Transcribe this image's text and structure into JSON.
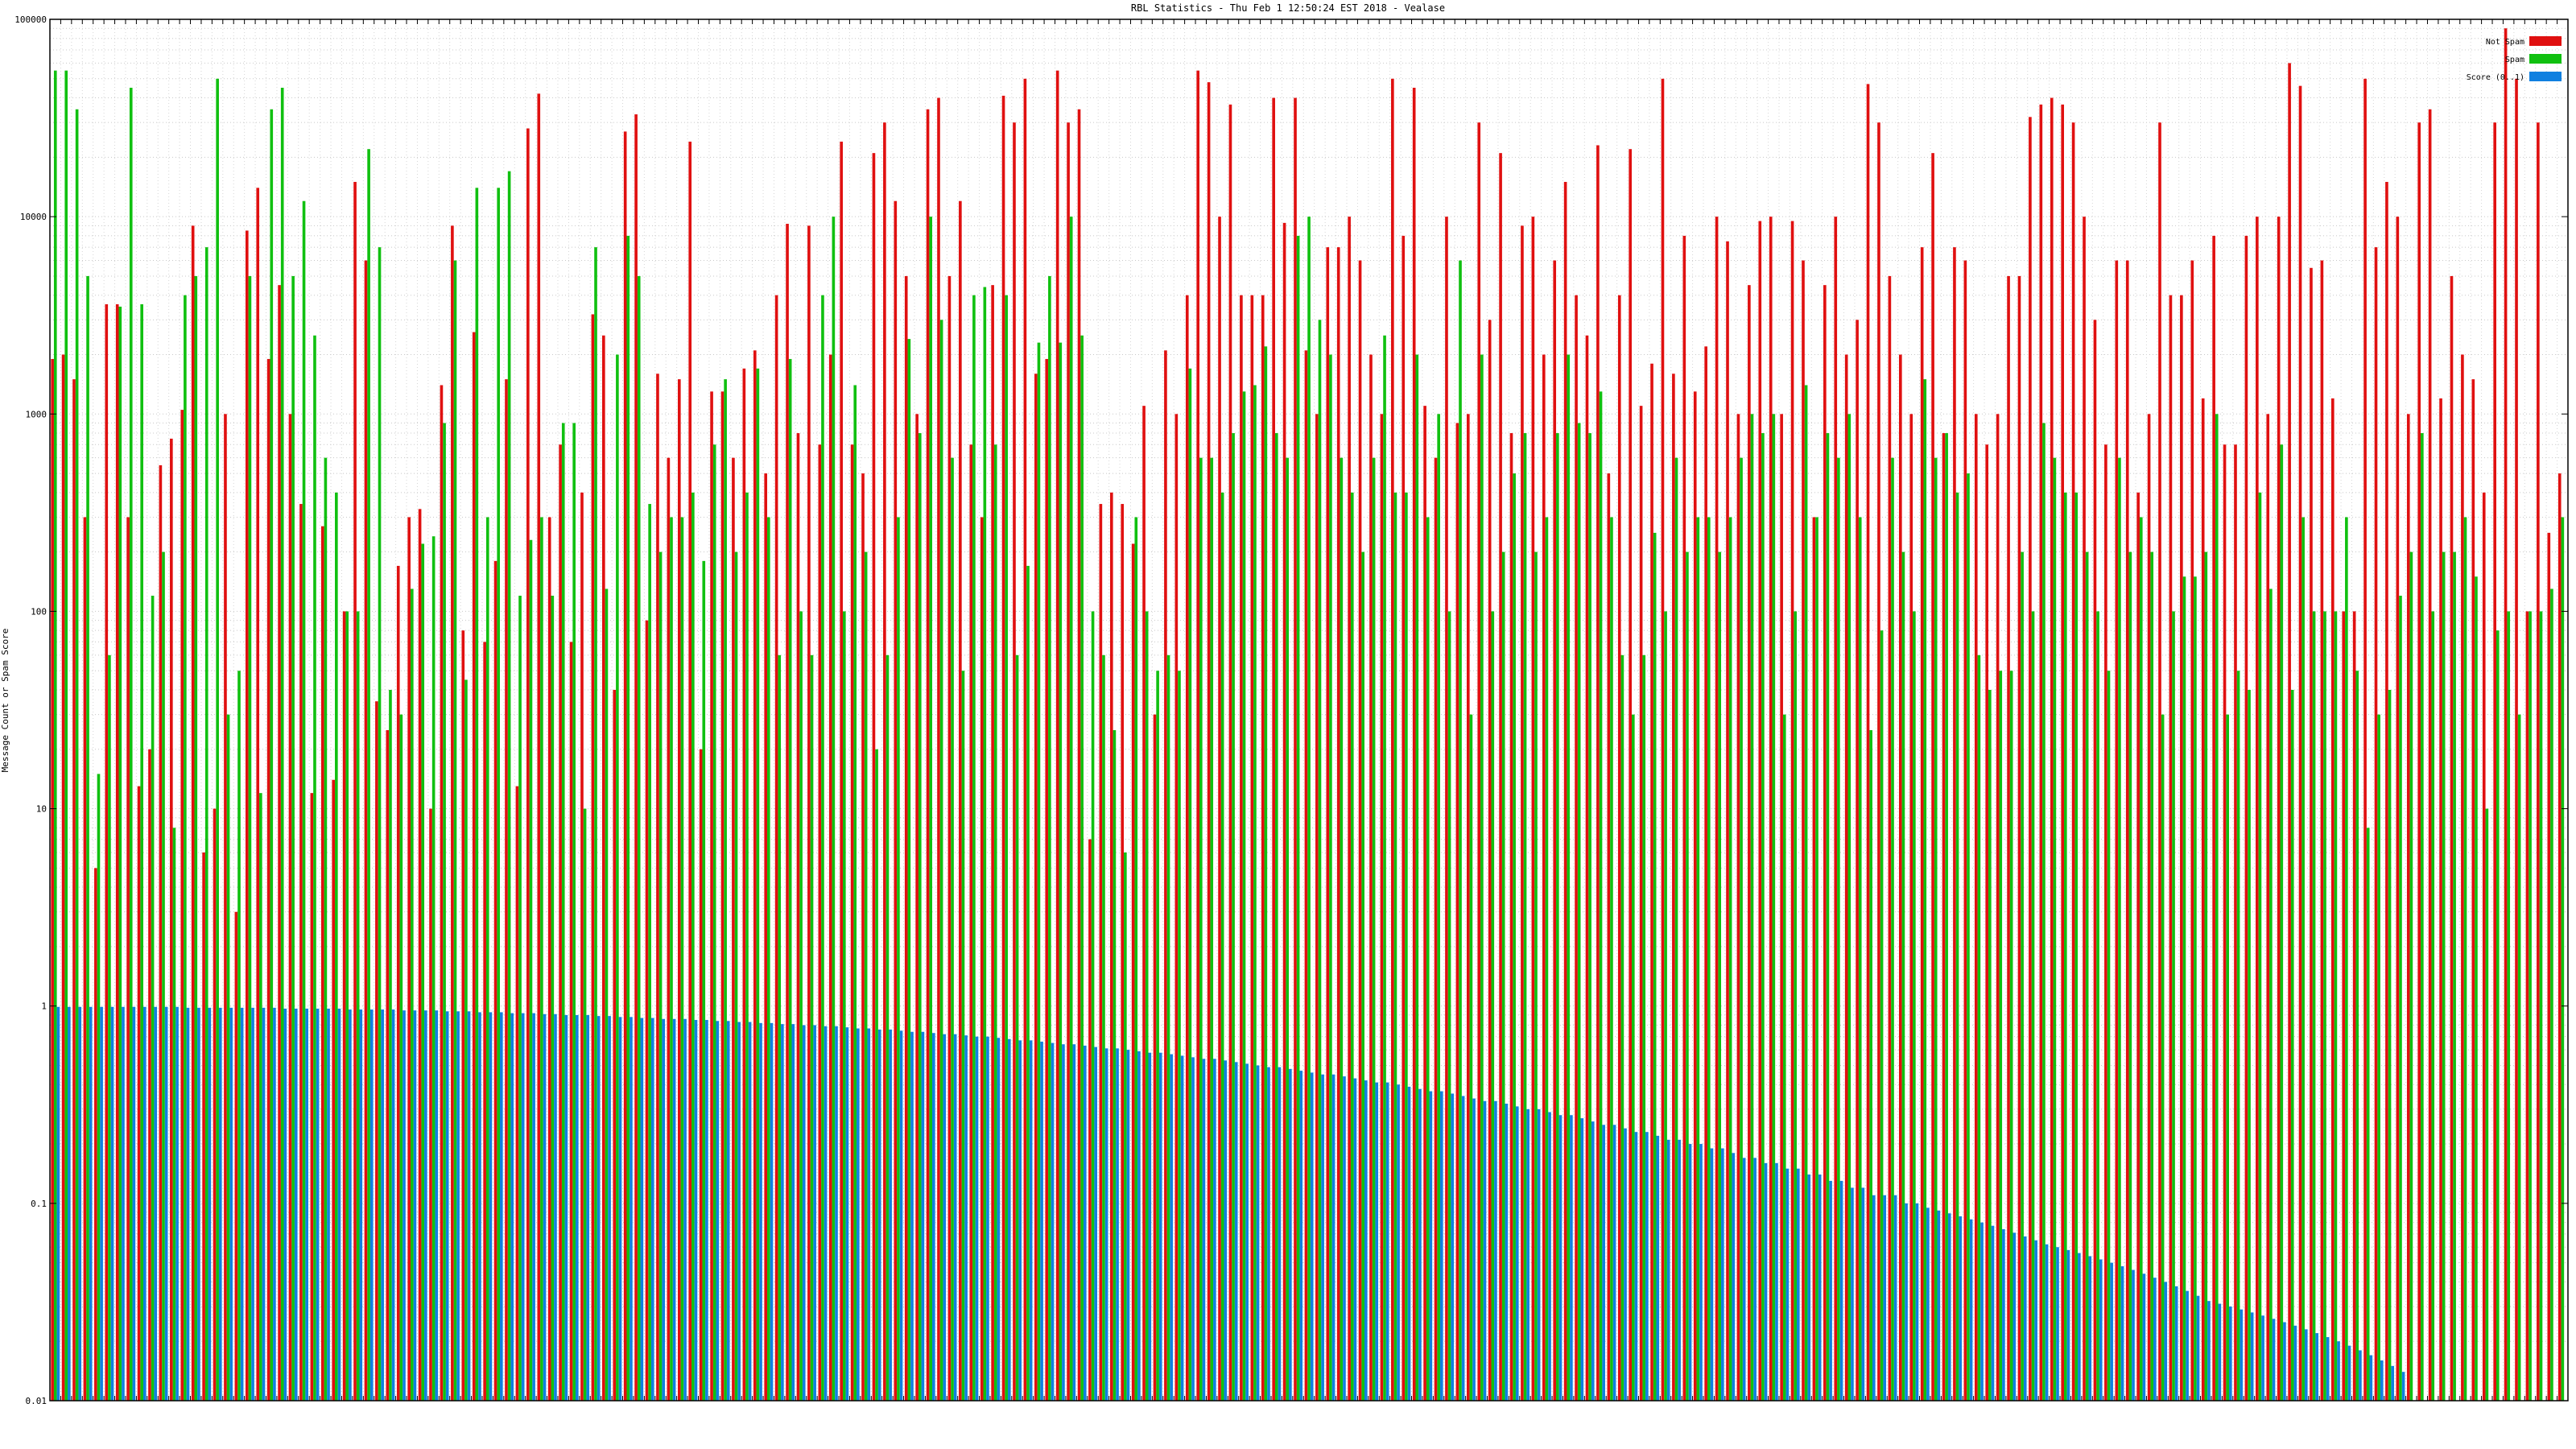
{
  "chart_data": {
    "type": "bar",
    "title": "RBL Statistics - Thu Feb  1 12:50:24 EST 2018 - Vealase",
    "xlabel": "",
    "ylabel": "Message Count or Spam Score",
    "y_scale": "log",
    "ylim": [
      0.01,
      100000
    ],
    "y_ticks": [
      {
        "value": 0.01,
        "label": "0.01"
      },
      {
        "value": 0.1,
        "label": "0.1"
      },
      {
        "value": 1,
        "label": "1"
      },
      {
        "value": 10,
        "label": "10"
      },
      {
        "value": 100,
        "label": "100"
      },
      {
        "value": 1000,
        "label": "1000"
      },
      {
        "value": 10000,
        "label": "10000"
      },
      {
        "value": 100000,
        "label": "100000"
      }
    ],
    "grid": true,
    "legend_position": "top-right",
    "x_tick_labels_legible": false,
    "series": [
      {
        "name": "Not Spam",
        "color": "#e01010",
        "values": [
          1900,
          2000,
          1500,
          300,
          5,
          3600,
          3600,
          300,
          13,
          20,
          550,
          750,
          1050,
          9000,
          6,
          10,
          1000,
          3,
          8500,
          14000,
          1900,
          4500,
          1000,
          350,
          12,
          270,
          14,
          100,
          15000,
          6000,
          35,
          25,
          170,
          300,
          330,
          10,
          1400,
          9000,
          80,
          2600,
          70,
          180,
          1500,
          13,
          28000,
          42000,
          300,
          700,
          70,
          400,
          3200,
          2500,
          40,
          27000,
          33000,
          90,
          1600,
          600,
          1500,
          24000,
          20,
          1300,
          1300,
          600,
          1700,
          2100,
          500,
          4000,
          9200,
          800,
          9000,
          700,
          2000,
          24000,
          700,
          500,
          21000,
          30000,
          12000,
          5000,
          1000,
          35000,
          40000,
          5000,
          12000,
          700,
          300,
          4500,
          41000,
          30000,
          50000,
          1600,
          1900,
          55000,
          30000,
          35000,
          7,
          350,
          400,
          350,
          220,
          1100,
          30,
          2100,
          1000,
          4000,
          55000,
          48000,
          10000,
          37000,
          4000,
          4000,
          4000,
          40000,
          9300,
          40000,
          2100,
          1000,
          7000,
          7000,
          10000,
          6000,
          2000,
          1000,
          50000,
          8000,
          45000,
          1100,
          600,
          10000,
          900,
          1000,
          30000,
          3000,
          21000,
          800,
          9000,
          10000,
          2000,
          6000,
          15000,
          4000,
          2500,
          23000,
          500,
          4000,
          22000,
          1100,
          1800,
          50000,
          1600,
          8000,
          1300,
          2200,
          10000,
          7500,
          1000,
          4500,
          9500,
          10000,
          1000,
          9500,
          6000,
          300,
          4500,
          10000,
          2000,
          3000,
          47000,
          30000,
          5000,
          2000,
          1000,
          7000,
          21000,
          800,
          7000,
          6000,
          1000,
          700,
          1000,
          5000,
          5000,
          32000,
          37000,
          40000,
          37000,
          30000,
          10000,
          3000,
          700,
          6000,
          6000,
          400,
          1000,
          30000,
          4000,
          4000,
          6000,
          1200,
          8000,
          700,
          700,
          8000,
          10000,
          1000,
          10000,
          60000,
          46000,
          5500,
          6000,
          1200,
          100,
          100,
          50000,
          7000,
          15000,
          10000,
          1000,
          30000,
          35000,
          1200,
          5000,
          2000,
          1500,
          400,
          30000,
          90000,
          50000,
          100,
          30000,
          250,
          500
        ]
      },
      {
        "name": "Spam",
        "color": "#10c010",
        "values": [
          55000,
          55000,
          35000,
          5000,
          15,
          60,
          3500,
          45000,
          3600,
          120,
          200,
          8,
          4000,
          5000,
          7000,
          50000,
          30,
          50,
          5000,
          12,
          35000,
          45000,
          5000,
          12000,
          2500,
          600,
          400,
          100,
          100,
          22000,
          7000,
          40,
          30,
          130,
          220,
          240,
          900,
          6000,
          45,
          14000,
          300,
          14000,
          17000,
          120,
          230,
          300,
          120,
          900,
          900,
          10,
          7000,
          130,
          2000,
          8000,
          5000,
          350,
          200,
          300,
          300,
          400,
          180,
          700,
          1500,
          200,
          400,
          1700,
          300,
          60,
          1900,
          100,
          60,
          4000,
          10000,
          100,
          1400,
          200,
          20,
          60,
          300,
          2400,
          800,
          10000,
          3000,
          600,
          50,
          4000,
          4400,
          700,
          4000,
          60,
          170,
          2300,
          5000,
          2300,
          10000,
          2500,
          100,
          60,
          25,
          6,
          300,
          100,
          50,
          60,
          50,
          1700,
          600,
          600,
          400,
          800,
          1300,
          1400,
          2200,
          800,
          600,
          8000,
          10000,
          3000,
          2000,
          600,
          400,
          200,
          600,
          2500,
          400,
          400,
          2000,
          300,
          1000,
          100,
          6000,
          30,
          2000,
          100,
          200,
          500,
          800,
          200,
          300,
          800,
          2000,
          900,
          800,
          1300,
          300,
          60,
          30,
          60,
          250,
          100,
          600,
          200,
          300,
          300,
          200,
          300,
          600,
          1000,
          800,
          1000,
          30,
          100,
          1400,
          300,
          800,
          600,
          1000,
          300,
          25,
          80,
          600,
          200,
          100,
          1500,
          600,
          800,
          400,
          500,
          60,
          40,
          50,
          50,
          200,
          100,
          900,
          600,
          400,
          400,
          200,
          100,
          50,
          600,
          200,
          300,
          200,
          30,
          100,
          150,
          150,
          200,
          1000,
          30,
          50,
          40,
          400,
          130,
          700,
          40,
          300,
          100,
          100,
          100,
          300,
          50,
          8,
          30,
          40,
          120,
          200,
          800,
          100,
          200,
          200,
          300,
          150,
          10,
          80,
          100,
          30,
          100,
          100,
          130,
          300
        ]
      },
      {
        "name": "Score (0..1)",
        "color": "#1080e0",
        "values": [
          0.99,
          0.99,
          0.99,
          0.99,
          0.99,
          0.99,
          0.99,
          0.99,
          0.99,
          0.99,
          0.99,
          0.99,
          0.98,
          0.98,
          0.98,
          0.98,
          0.98,
          0.98,
          0.98,
          0.98,
          0.98,
          0.97,
          0.97,
          0.97,
          0.97,
          0.97,
          0.97,
          0.96,
          0.96,
          0.96,
          0.96,
          0.96,
          0.95,
          0.95,
          0.95,
          0.95,
          0.94,
          0.94,
          0.94,
          0.93,
          0.93,
          0.93,
          0.92,
          0.92,
          0.92,
          0.91,
          0.91,
          0.9,
          0.9,
          0.9,
          0.89,
          0.89,
          0.88,
          0.88,
          0.87,
          0.87,
          0.86,
          0.86,
          0.86,
          0.85,
          0.85,
          0.84,
          0.84,
          0.83,
          0.83,
          0.82,
          0.82,
          0.81,
          0.81,
          0.8,
          0.8,
          0.79,
          0.79,
          0.78,
          0.77,
          0.77,
          0.76,
          0.76,
          0.75,
          0.74,
          0.74,
          0.73,
          0.72,
          0.72,
          0.71,
          0.7,
          0.7,
          0.69,
          0.68,
          0.67,
          0.67,
          0.66,
          0.65,
          0.64,
          0.64,
          0.63,
          0.62,
          0.61,
          0.61,
          0.6,
          0.59,
          0.58,
          0.58,
          0.57,
          0.56,
          0.55,
          0.54,
          0.54,
          0.53,
          0.52,
          0.51,
          0.5,
          0.49,
          0.49,
          0.48,
          0.47,
          0.46,
          0.45,
          0.45,
          0.44,
          0.43,
          0.42,
          0.41,
          0.41,
          0.4,
          0.39,
          0.38,
          0.37,
          0.37,
          0.36,
          0.35,
          0.34,
          0.33,
          0.33,
          0.32,
          0.31,
          0.3,
          0.3,
          0.29,
          0.28,
          0.28,
          0.27,
          0.26,
          0.25,
          0.25,
          0.24,
          0.23,
          0.23,
          0.22,
          0.21,
          0.21,
          0.2,
          0.2,
          0.19,
          0.19,
          0.18,
          0.17,
          0.17,
          0.16,
          0.16,
          0.15,
          0.15,
          0.14,
          0.14,
          0.13,
          0.13,
          0.12,
          0.12,
          0.11,
          0.11,
          0.11,
          0.1,
          0.1,
          0.095,
          0.092,
          0.089,
          0.086,
          0.083,
          0.08,
          0.077,
          0.074,
          0.071,
          0.068,
          0.065,
          0.062,
          0.06,
          0.058,
          0.056,
          0.054,
          0.052,
          0.05,
          0.048,
          0.046,
          0.044,
          0.042,
          0.04,
          0.038,
          0.036,
          0.034,
          0.032,
          0.031,
          0.03,
          0.029,
          0.028,
          0.027,
          0.026,
          0.025,
          0.024,
          0.023,
          0.022,
          0.021,
          0.02,
          0.019,
          0.018,
          0.017,
          0.016,
          0.015,
          0.014
        ]
      }
    ]
  }
}
